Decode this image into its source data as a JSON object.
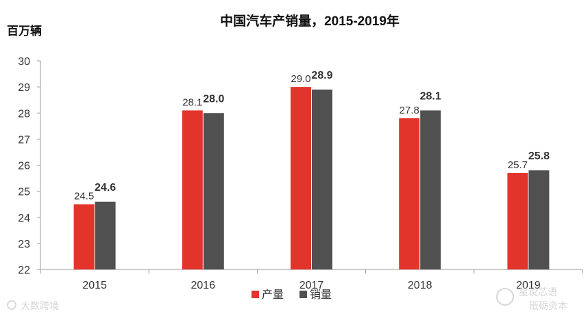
{
  "chart_data": {
    "type": "bar",
    "title": "中国汽车产销量，2015-2019年",
    "ylabel": "百万辆",
    "xlabel": "",
    "categories": [
      "2015",
      "2016",
      "2017",
      "2018",
      "2019"
    ],
    "series": [
      {
        "name": "产量",
        "values": [
          24.5,
          28.1,
          29.0,
          27.8,
          25.7
        ],
        "color": "#e2342a",
        "labels": [
          "24.5",
          "28.1",
          "29.0",
          "27.8",
          "25.7"
        ]
      },
      {
        "name": "销量",
        "values": [
          24.6,
          28.0,
          28.9,
          28.1,
          25.8
        ],
        "color": "#505050",
        "labels": [
          "24.6",
          "28.0",
          "28.9",
          "28.1",
          "25.8"
        ]
      }
    ],
    "ylim": [
      22,
      30
    ],
    "yticks": [
      "22",
      "23",
      "24",
      "25",
      "26",
      "27",
      "28",
      "29",
      "30"
    ],
    "grid": false,
    "legend_position": "bottom"
  },
  "watermarks": {
    "left": "大数跨境",
    "right_top": "星说芯语",
    "right_bottom": "砥砺资本"
  }
}
